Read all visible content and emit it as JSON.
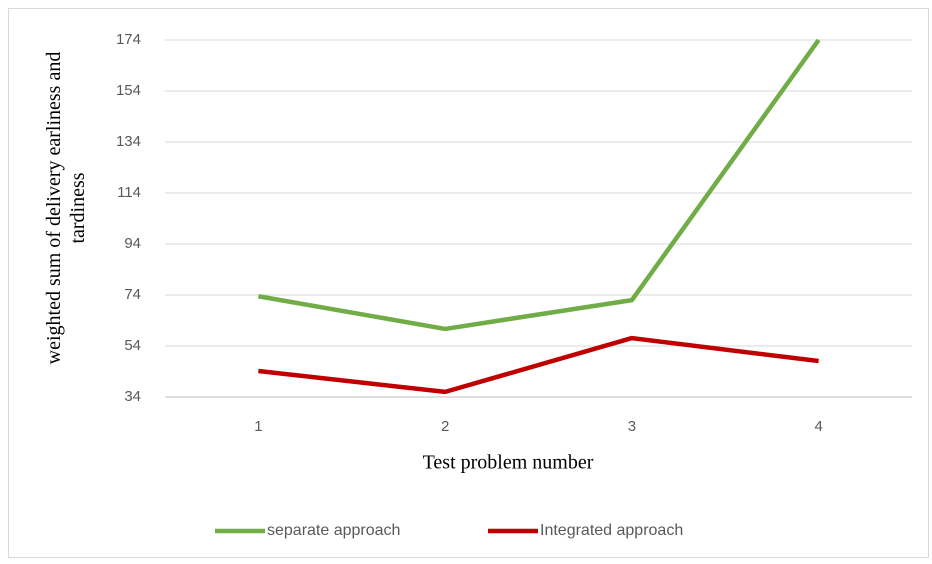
{
  "chart_data": {
    "type": "line",
    "x_label": "Test problem number",
    "y_label": "weighted sum of delivery earliness and tardiness",
    "categories": [
      "1",
      "2",
      "3",
      "4"
    ],
    "series": [
      {
        "name": "separate approach",
        "color": "#70ad47",
        "values": [
          73.5,
          60.7,
          72,
          174
        ]
      },
      {
        "name": "Integrated approach",
        "color": "#c00000",
        "values": [
          44.2,
          36,
          57.1,
          48.1
        ]
      }
    ],
    "ylim": [
      34,
      174
    ],
    "yticks": [
      34,
      54,
      74,
      94,
      114,
      134,
      154,
      174
    ],
    "grid": true,
    "legend": "bottom"
  }
}
